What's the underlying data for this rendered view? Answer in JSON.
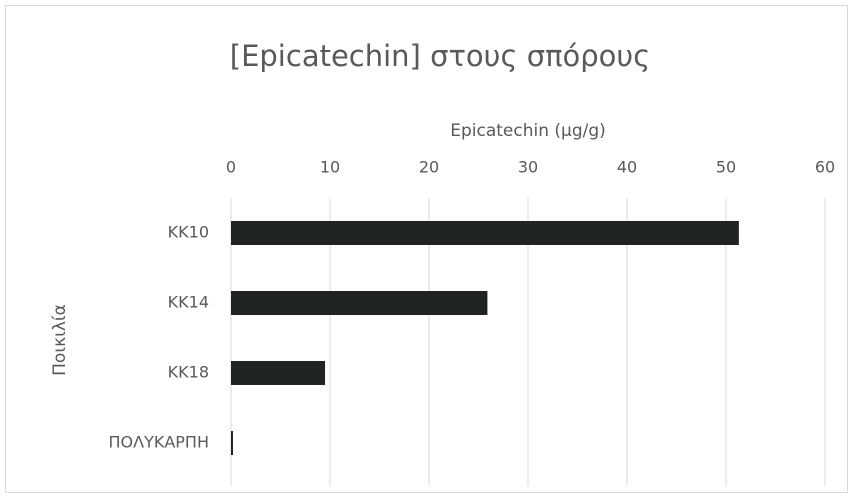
{
  "chart_data": {
    "type": "bar",
    "orientation": "horizontal",
    "title": "[Epicatechin] στους σπόρους",
    "x_label": "Epicatechin (μg/g)",
    "y_label": "Ποικιλία",
    "categories": [
      "KK10",
      "KK14",
      "KK18",
      "ΠΟΛΥΚΑΡΠΗ"
    ],
    "values": [
      51.3,
      25.9,
      9.5,
      0.2
    ],
    "color": "#1f2422",
    "xlim": [
      0,
      60
    ],
    "xticks": [
      0,
      10,
      20,
      30,
      40,
      50,
      60
    ],
    "grid": true
  }
}
